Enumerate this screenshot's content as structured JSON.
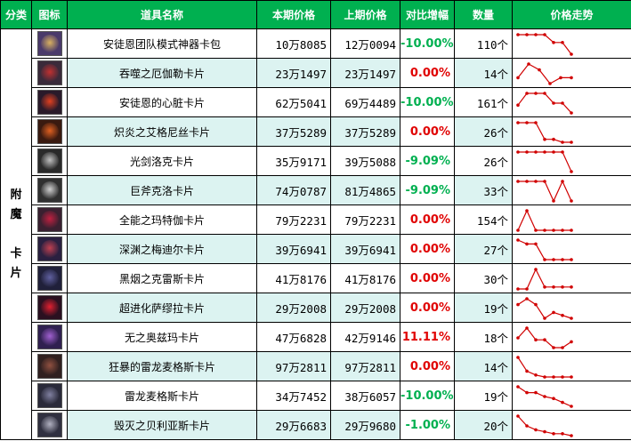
{
  "headers": {
    "category": "分类",
    "icon": "图标",
    "name": "道具名称",
    "current_price": "本期价格",
    "previous_price": "上期价格",
    "change": "对比增幅",
    "quantity": "数量",
    "trend": "价格走势"
  },
  "category_label": "附\n魔\n\n卡\n片",
  "trend_color": "#d00000",
  "rows": [
    {
      "name": "安徒恩团队模式神器卡包",
      "current": "10万8085",
      "previous": "12万0094",
      "change": "-10.00%",
      "dir": "neg",
      "qty": "110个",
      "icon": "card-pack-icon",
      "trend": [
        1,
        1,
        1,
        1,
        0.6,
        0.6,
        0
      ]
    },
    {
      "name": "吞噬之厄伽勒卡片",
      "current": "23万1497",
      "previous": "23万1497",
      "change": "0.00%",
      "dir": "zero",
      "qty": "14个",
      "icon": "card-icon",
      "trend": [
        0.3,
        1,
        0.7,
        0,
        0.3,
        0.3
      ]
    },
    {
      "name": "安徒恩的心脏卡片",
      "current": "62万5041",
      "previous": "69万4489",
      "change": "-10.00%",
      "dir": "neg",
      "qty": "161个",
      "icon": "card-icon",
      "trend": [
        0.4,
        1,
        1,
        1,
        0.5,
        0.5,
        0
      ]
    },
    {
      "name": "炽炎之艾格尼丝卡片",
      "current": "37万5289",
      "previous": "37万5289",
      "change": "0.00%",
      "dir": "zero",
      "qty": "26个",
      "icon": "card-icon",
      "trend": [
        1,
        1,
        1,
        0.15,
        0.15,
        0,
        0
      ]
    },
    {
      "name": "光剑洛克卡片",
      "current": "35万9171",
      "previous": "39万5088",
      "change": "-9.09%",
      "dir": "neg",
      "qty": "26个",
      "icon": "card-icon",
      "trend": [
        1,
        1,
        1,
        1,
        1,
        1,
        0
      ]
    },
    {
      "name": "巨斧克洛卡片",
      "current": "74万0787",
      "previous": "81万4865",
      "change": "-9.09%",
      "dir": "neg",
      "qty": "33个",
      "icon": "card-icon",
      "trend": [
        1,
        1,
        1,
        1,
        0,
        1,
        0
      ]
    },
    {
      "name": "全能之玛特伽卡片",
      "current": "79万2231",
      "previous": "79万2231",
      "change": "0.00%",
      "dir": "zero",
      "qty": "154个",
      "icon": "card-icon",
      "trend": [
        0,
        1,
        0,
        0,
        0,
        0,
        0
      ]
    },
    {
      "name": "深渊之梅迪尔卡片",
      "current": "39万6941",
      "previous": "39万6941",
      "change": "0.00%",
      "dir": "zero",
      "qty": "27个",
      "icon": "card-icon",
      "trend": [
        1,
        0.8,
        0.8,
        0,
        0,
        0,
        0
      ]
    },
    {
      "name": "黑烟之克雷斯卡片",
      "current": "41万8176",
      "previous": "41万8176",
      "change": "0.00%",
      "dir": "zero",
      "qty": "30个",
      "icon": "card-icon",
      "trend": [
        0,
        0,
        1,
        0.1,
        0.1,
        0.1,
        0.1
      ]
    },
    {
      "name": "超进化萨缪拉卡片",
      "current": "29万2008",
      "previous": "29万2008",
      "change": "0.00%",
      "dir": "zero",
      "qty": "19个",
      "icon": "card-icon",
      "trend": [
        0.7,
        1,
        0.7,
        0,
        0.3,
        0.15,
        0
      ]
    },
    {
      "name": "无之奥兹玛卡片",
      "current": "47万6828",
      "previous": "42万9146",
      "change": "11.11%",
      "dir": "pos",
      "qty": "18个",
      "icon": "card-icon",
      "trend": [
        0.5,
        1,
        0.4,
        0.4,
        0,
        0,
        0.3
      ]
    },
    {
      "name": "狂暴的雷龙麦格斯卡片",
      "current": "97万2811",
      "previous": "97万2811",
      "change": "0.00%",
      "dir": "zero",
      "qty": "14个",
      "icon": "card-icon",
      "trend": [
        1,
        0.3,
        0.1,
        0,
        0,
        0,
        0
      ]
    },
    {
      "name": "雷龙麦格斯卡片",
      "current": "34万7452",
      "previous": "38万6057",
      "change": "-10.00%",
      "dir": "neg",
      "qty": "19个",
      "icon": "card-icon",
      "trend": [
        1,
        0.7,
        0.7,
        0.5,
        0.4,
        0.2,
        0
      ]
    },
    {
      "name": "毁灭之贝利亚斯卡片",
      "current": "29万6683",
      "previous": "29万9680",
      "change": "-1.00%",
      "dir": "neg",
      "qty": "20个",
      "icon": "card-icon",
      "trend": [
        1,
        0.5,
        0.3,
        0.2,
        0.1,
        0.1,
        0
      ]
    }
  ],
  "icon_colors": [
    [
      "#4a3a6a",
      "#d8b060"
    ],
    [
      "#3a2a3a",
      "#c03030"
    ],
    [
      "#2a1a2a",
      "#e04020"
    ],
    [
      "#3a1a10",
      "#e06020"
    ],
    [
      "#2a2a2a",
      "#c0c0c0"
    ],
    [
      "#303030",
      "#d0d0d0"
    ],
    [
      "#3a2030",
      "#c02040"
    ],
    [
      "#2a2040",
      "#c04050"
    ],
    [
      "#20203a",
      "#6060a0"
    ],
    [
      "#2a1020",
      "#e02030"
    ],
    [
      "#302050",
      "#a060d0"
    ],
    [
      "#302020",
      "#905040"
    ],
    [
      "#2a2a3a",
      "#8080a0"
    ],
    [
      "#303040",
      "#b0b0c0"
    ]
  ]
}
